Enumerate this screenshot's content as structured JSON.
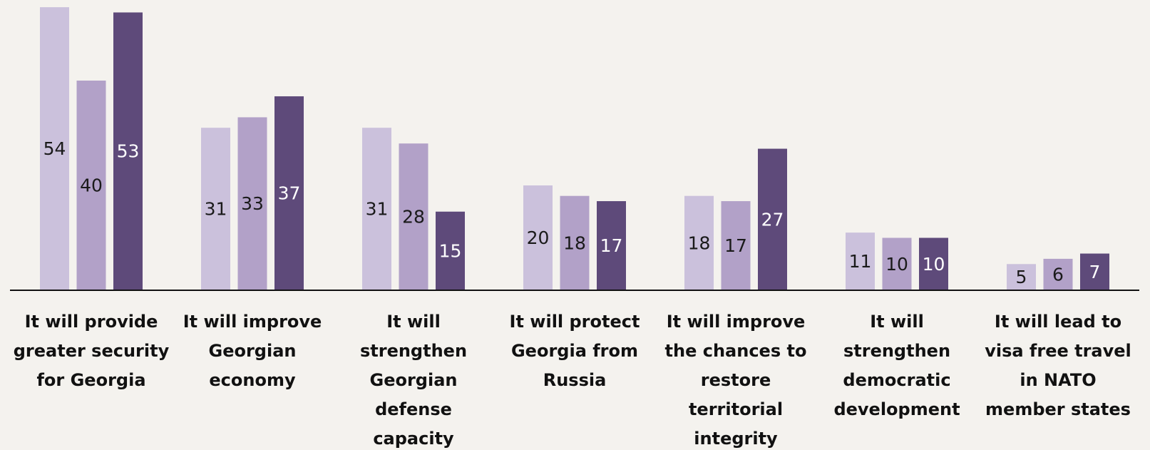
{
  "chart_data": {
    "type": "bar",
    "title": "",
    "xlabel": "",
    "ylabel": "",
    "ylim": [
      0,
      55
    ],
    "grid": false,
    "legend": "none",
    "categories": [
      [
        "It will provide",
        "greater security",
        "for Georgia"
      ],
      [
        "It will improve",
        "Georgian",
        "economy"
      ],
      [
        "It will",
        "strengthen",
        "Georgian",
        "defense",
        "capacity"
      ],
      [
        "It will protect",
        "Georgia from",
        "Russia"
      ],
      [
        "It will improve",
        "the chances to",
        "restore",
        "territorial",
        "integrity"
      ],
      [
        "It will",
        "strengthen",
        "democratic",
        "development"
      ],
      [
        "It will lead to",
        "visa free travel",
        "in NATO",
        "member states"
      ]
    ],
    "series": [
      {
        "values": [
          54,
          31,
          31,
          20,
          18,
          11,
          5
        ],
        "color": "#cbc1dc",
        "label_color": "#1a1a1a"
      },
      {
        "values": [
          40,
          33,
          28,
          18,
          17,
          10,
          6
        ],
        "color": "#b2a1c8",
        "label_color": "#1a1a1a"
      },
      {
        "values": [
          53,
          37,
          15,
          17,
          27,
          10,
          7
        ],
        "color": "#5e4a7a",
        "label_color": "#ffffff"
      }
    ],
    "axis_color": "#111111"
  }
}
